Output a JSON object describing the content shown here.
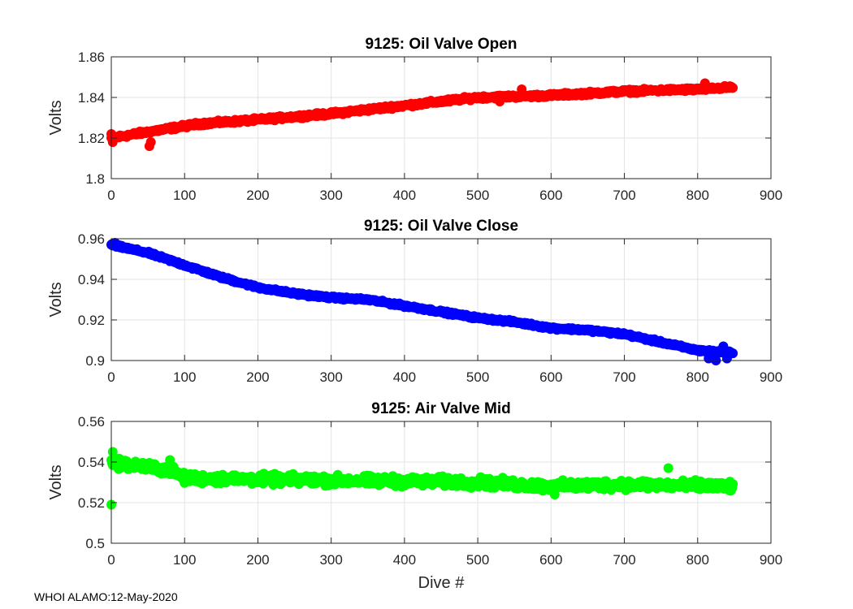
{
  "footer": "WHOI ALAMO:12-May-2020",
  "chart_data": [
    {
      "type": "scatter",
      "title": "9125: Oil Valve Open",
      "xlabel": "",
      "ylabel": "Volts",
      "xlim": [
        0,
        900
      ],
      "ylim": [
        1.8,
        1.86
      ],
      "xticks": [
        "0",
        "100",
        "200",
        "300",
        "400",
        "500",
        "600",
        "700",
        "800",
        "900"
      ],
      "yticks": [
        "1.8",
        "1.82",
        "1.84",
        "1.86"
      ],
      "grid": true,
      "color": "#ff0000",
      "x_range": [
        0,
        848
      ],
      "trend": [
        [
          0,
          1.82
        ],
        [
          50,
          1.823
        ],
        [
          120,
          1.827
        ],
        [
          200,
          1.829
        ],
        [
          300,
          1.832
        ],
        [
          400,
          1.836
        ],
        [
          500,
          1.84
        ],
        [
          600,
          1.841
        ],
        [
          700,
          1.843
        ],
        [
          800,
          1.844
        ],
        [
          848,
          1.845
        ]
      ],
      "spread": 0.0012,
      "outliers": [
        [
          0,
          1.822
        ],
        [
          2,
          1.818
        ],
        [
          52,
          1.816
        ],
        [
          54,
          1.818
        ],
        [
          560,
          1.844
        ],
        [
          810,
          1.847
        ],
        [
          530,
          1.838
        ]
      ]
    },
    {
      "type": "scatter",
      "title": "9125: Oil Valve Close",
      "xlabel": "",
      "ylabel": "Volts",
      "xlim": [
        0,
        900
      ],
      "ylim": [
        0.9,
        0.96
      ],
      "xticks": [
        "0",
        "100",
        "200",
        "300",
        "400",
        "500",
        "600",
        "700",
        "800",
        "900"
      ],
      "yticks": [
        "0.9",
        "0.92",
        "0.94",
        "0.96"
      ],
      "grid": true,
      "color": "#0000ff",
      "x_range": [
        0,
        848
      ],
      "trend": [
        [
          0,
          0.957
        ],
        [
          50,
          0.953
        ],
        [
          100,
          0.947
        ],
        [
          150,
          0.941
        ],
        [
          200,
          0.936
        ],
        [
          250,
          0.933
        ],
        [
          300,
          0.931
        ],
        [
          350,
          0.93
        ],
        [
          400,
          0.927
        ],
        [
          450,
          0.924
        ],
        [
          500,
          0.921
        ],
        [
          550,
          0.919
        ],
        [
          600,
          0.916
        ],
        [
          650,
          0.915
        ],
        [
          700,
          0.913
        ],
        [
          750,
          0.909
        ],
        [
          800,
          0.905
        ],
        [
          848,
          0.904
        ]
      ],
      "spread": 0.0009,
      "outliers": [
        [
          5,
          0.958
        ],
        [
          815,
          0.901
        ],
        [
          825,
          0.9
        ],
        [
          840,
          0.901
        ],
        [
          835,
          0.907
        ]
      ]
    },
    {
      "type": "scatter",
      "title": "9125: Air Valve Mid",
      "xlabel": "Dive #",
      "ylabel": "Volts",
      "xlim": [
        0,
        900
      ],
      "ylim": [
        0.5,
        0.56
      ],
      "xticks": [
        "0",
        "100",
        "200",
        "300",
        "400",
        "500",
        "600",
        "700",
        "800",
        "900"
      ],
      "yticks": [
        "0.5",
        "0.52",
        "0.54",
        "0.56"
      ],
      "grid": true,
      "color": "#00ff00",
      "x_range": [
        0,
        848
      ],
      "trend": [
        [
          0,
          0.54
        ],
        [
          80,
          0.536
        ],
        [
          100,
          0.532
        ],
        [
          300,
          0.531
        ],
        [
          500,
          0.53
        ],
        [
          600,
          0.528
        ],
        [
          700,
          0.529
        ],
        [
          848,
          0.528
        ]
      ],
      "spread": 0.0035,
      "outliers": [
        [
          0,
          0.519
        ],
        [
          2,
          0.545
        ],
        [
          5,
          0.541
        ],
        [
          80,
          0.541
        ],
        [
          760,
          0.537
        ],
        [
          605,
          0.524
        ]
      ]
    }
  ]
}
